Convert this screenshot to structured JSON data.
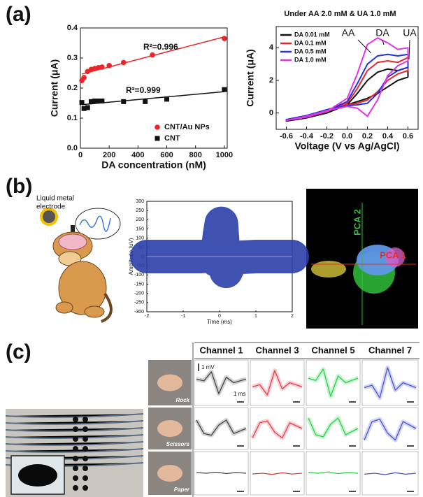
{
  "panel_labels": [
    "(a)",
    "(b)",
    "(c)"
  ],
  "chart_data": [
    {
      "type": "scatter",
      "xlabel": "DA concentration (nM)",
      "ylabel": "Current (μA)",
      "xlim": [
        0,
        1020
      ],
      "ylim": [
        0,
        0.4
      ],
      "xticks": [
        0,
        200,
        400,
        600,
        800,
        1000
      ],
      "yticks": [
        {
          "value": 0,
          "label": "0.0"
        },
        0.1,
        0.2,
        0.3,
        0.4
      ],
      "legend": "lower right",
      "series": [
        {
          "name": "CNT/Au NPs",
          "color": "#e8262b",
          "marker": "circle",
          "fit_label": "R²=0.996",
          "x": [
            10,
            25,
            50,
            75,
            100,
            125,
            150,
            200,
            300,
            500,
            1000
          ],
          "values": [
            0.225,
            0.235,
            0.255,
            0.262,
            0.265,
            0.268,
            0.27,
            0.275,
            0.285,
            0.31,
            0.365
          ]
        },
        {
          "name": "CNT",
          "color": "#111111",
          "marker": "square",
          "fit_label": "R²=0.999",
          "x": [
            10,
            25,
            50,
            75,
            100,
            125,
            150,
            300,
            450,
            600,
            1000
          ],
          "values": [
            0.152,
            0.132,
            0.135,
            0.155,
            0.157,
            0.157,
            0.157,
            0.155,
            0.155,
            0.163,
            0.195
          ]
        }
      ]
    },
    {
      "type": "line",
      "title": "Under AA 2.0 mM & UA 1.0 mM",
      "xlabel": "Voltage (V vs Ag/AgCl)",
      "ylabel": "Current (μA)",
      "xlim": [
        -0.7,
        0.7
      ],
      "ylim": [
        -1,
        5.3
      ],
      "xticks": [
        -0.6,
        -0.4,
        -0.2,
        {
          "value": 0,
          "label": "0.0"
        },
        0.2,
        0.4,
        0.6
      ],
      "yticks": [
        0,
        2,
        4
      ],
      "legend": "upper left",
      "annotations": [
        "AA",
        "DA",
        "UA"
      ],
      "series": [
        {
          "name": "DA 0.01 mM",
          "color": "#111111",
          "x": [
            -0.6,
            -0.4,
            -0.2,
            0,
            0.1,
            0.2,
            0.3,
            0.4,
            0.5,
            0.6,
            0.6,
            0.5,
            0.4,
            0.3,
            0.2,
            0.1,
            0,
            -0.2,
            -0.4,
            -0.6
          ],
          "values": [
            -0.5,
            -0.3,
            0,
            0.5,
            1.2,
            2.0,
            2.5,
            2.7,
            2.6,
            2.8,
            2.2,
            2.0,
            1.6,
            1.2,
            0.9,
            0.7,
            0.5,
            0.2,
            -0.2,
            -0.5
          ]
        },
        {
          "name": "DA 0.1 mM",
          "color": "#e8262b",
          "x": [
            -0.6,
            -0.4,
            -0.2,
            0,
            0.1,
            0.2,
            0.3,
            0.4,
            0.5,
            0.6,
            0.6,
            0.5,
            0.4,
            0.3,
            0.2,
            0.1,
            0,
            -0.2,
            -0.4,
            -0.6
          ],
          "values": [
            -0.45,
            -0.25,
            0.1,
            0.6,
            1.5,
            2.6,
            3.1,
            3.2,
            3.1,
            3.4,
            2.6,
            2.4,
            2.0,
            1.3,
            0.8,
            0.6,
            0.5,
            0.2,
            -0.2,
            -0.45
          ]
        },
        {
          "name": "DA 0.5 mM",
          "color": "#2233dd",
          "x": [
            -0.6,
            -0.4,
            -0.2,
            0,
            0.1,
            0.2,
            0.3,
            0.4,
            0.5,
            0.6,
            0.6,
            0.5,
            0.4,
            0.3,
            0.2,
            0.1,
            0,
            -0.2,
            -0.4,
            -0.6
          ],
          "values": [
            -0.4,
            -0.2,
            0.15,
            0.7,
            1.8,
            3.0,
            3.5,
            3.6,
            3.5,
            3.6,
            2.8,
            2.6,
            2.2,
            1.2,
            0.6,
            0.5,
            0.45,
            0.2,
            -0.15,
            -0.4
          ]
        },
        {
          "name": "DA 1.0 mM",
          "color": "#e533e5",
          "x": [
            -0.6,
            -0.4,
            -0.2,
            0,
            0.1,
            0.2,
            0.3,
            0.4,
            0.5,
            0.6,
            0.6,
            0.5,
            0.4,
            0.3,
            0.2,
            0.1,
            0,
            -0.2,
            -0.4,
            -0.6
          ],
          "values": [
            -0.45,
            -0.25,
            0.1,
            0.9,
            2.4,
            4.2,
            4.6,
            4.3,
            3.9,
            4.0,
            3.2,
            2.9,
            2.3,
            0.8,
            -0.2,
            0.3,
            0.4,
            0.15,
            -0.2,
            -0.45
          ]
        }
      ]
    },
    {
      "type": "line",
      "xlabel": "Time (ms)",
      "ylabel": "Amplitude (uV)",
      "xlim": [
        -2,
        2
      ],
      "ylim": [
        -300,
        300
      ],
      "xticks": [
        -2,
        -1,
        0,
        1,
        2
      ],
      "yticks": [
        -300,
        -250,
        -200,
        -150,
        -100,
        -50,
        0,
        50,
        100,
        150,
        200,
        250,
        300
      ],
      "line_width": 48,
      "series": [
        {
          "color": "#2b3fa8",
          "x": [
            -2,
            -1.5,
            -1,
            -0.5,
            -0.2,
            -0.08,
            0,
            0.05,
            0.1,
            0.18,
            0.3,
            0.5,
            1,
            1.5,
            2
          ],
          "values": [
            0,
            0,
            0,
            0,
            5,
            -20,
            120,
            180,
            40,
            -80,
            -30,
            -5,
            0,
            0,
            0
          ]
        }
      ]
    }
  ],
  "figure_b": {
    "electrode_label": [
      "Liquid metal",
      "electrode"
    ],
    "pca_x": "PCA 1",
    "pca_y": "PCA 2"
  },
  "figure_c": {
    "headers": [
      "Channel 1",
      "Channel 3",
      "Channel 5",
      "Channel 7"
    ],
    "rows": [
      "Rock",
      "Scissors",
      "Paper"
    ],
    "scale_voltage": "1 mV",
    "scale_time": "1 ms"
  }
}
